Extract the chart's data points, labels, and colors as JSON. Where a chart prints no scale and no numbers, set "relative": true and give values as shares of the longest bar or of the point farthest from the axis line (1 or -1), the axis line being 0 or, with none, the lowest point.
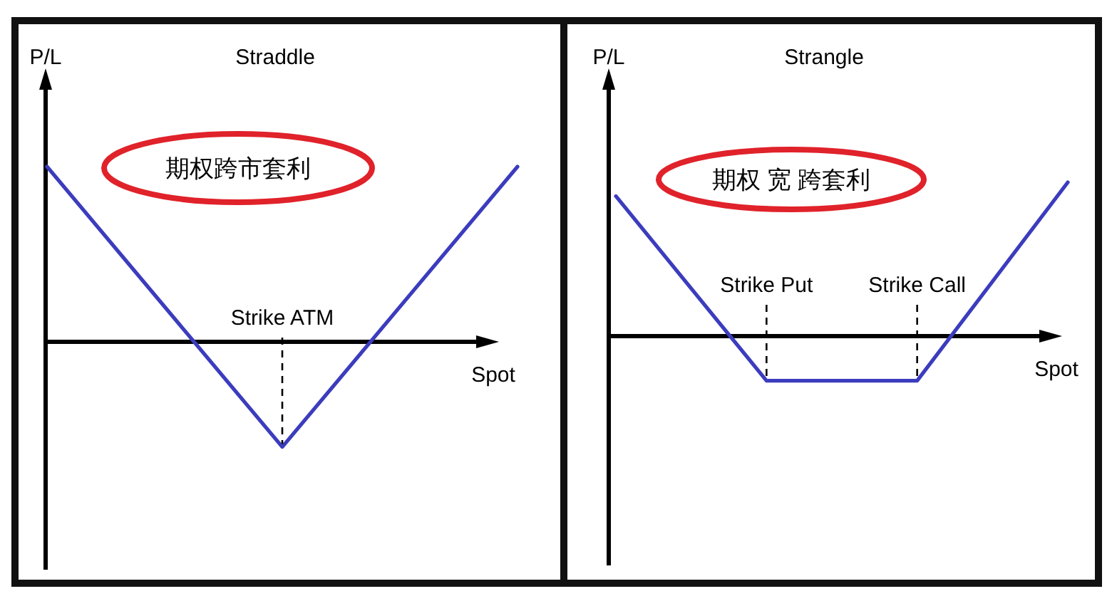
{
  "chart_data": [
    {
      "type": "line",
      "title": "Straddle",
      "xlabel": "Spot",
      "ylabel": "P/L",
      "categories": [
        null,
        null,
        null
      ],
      "relative": true,
      "series": [
        {
          "color": "#3c3cbe",
          "values": [
            1,
            -0.6,
            1
          ]
        }
      ],
      "annotations": [
        "期权跨市套利",
        "Strike ATM"
      ]
    },
    {
      "type": "line",
      "title": "Strangle",
      "xlabel": "Spot",
      "ylabel": "P/L",
      "categories": [
        null,
        null,
        null,
        null
      ],
      "relative": true,
      "series": [
        {
          "color": "#3c3cbe",
          "values": [
            0.91,
            -0.29,
            -0.29,
            1
          ]
        }
      ],
      "annotations": [
        "期权 宽 跨套利",
        "Strike Put",
        "Strike Call"
      ]
    }
  ]
}
